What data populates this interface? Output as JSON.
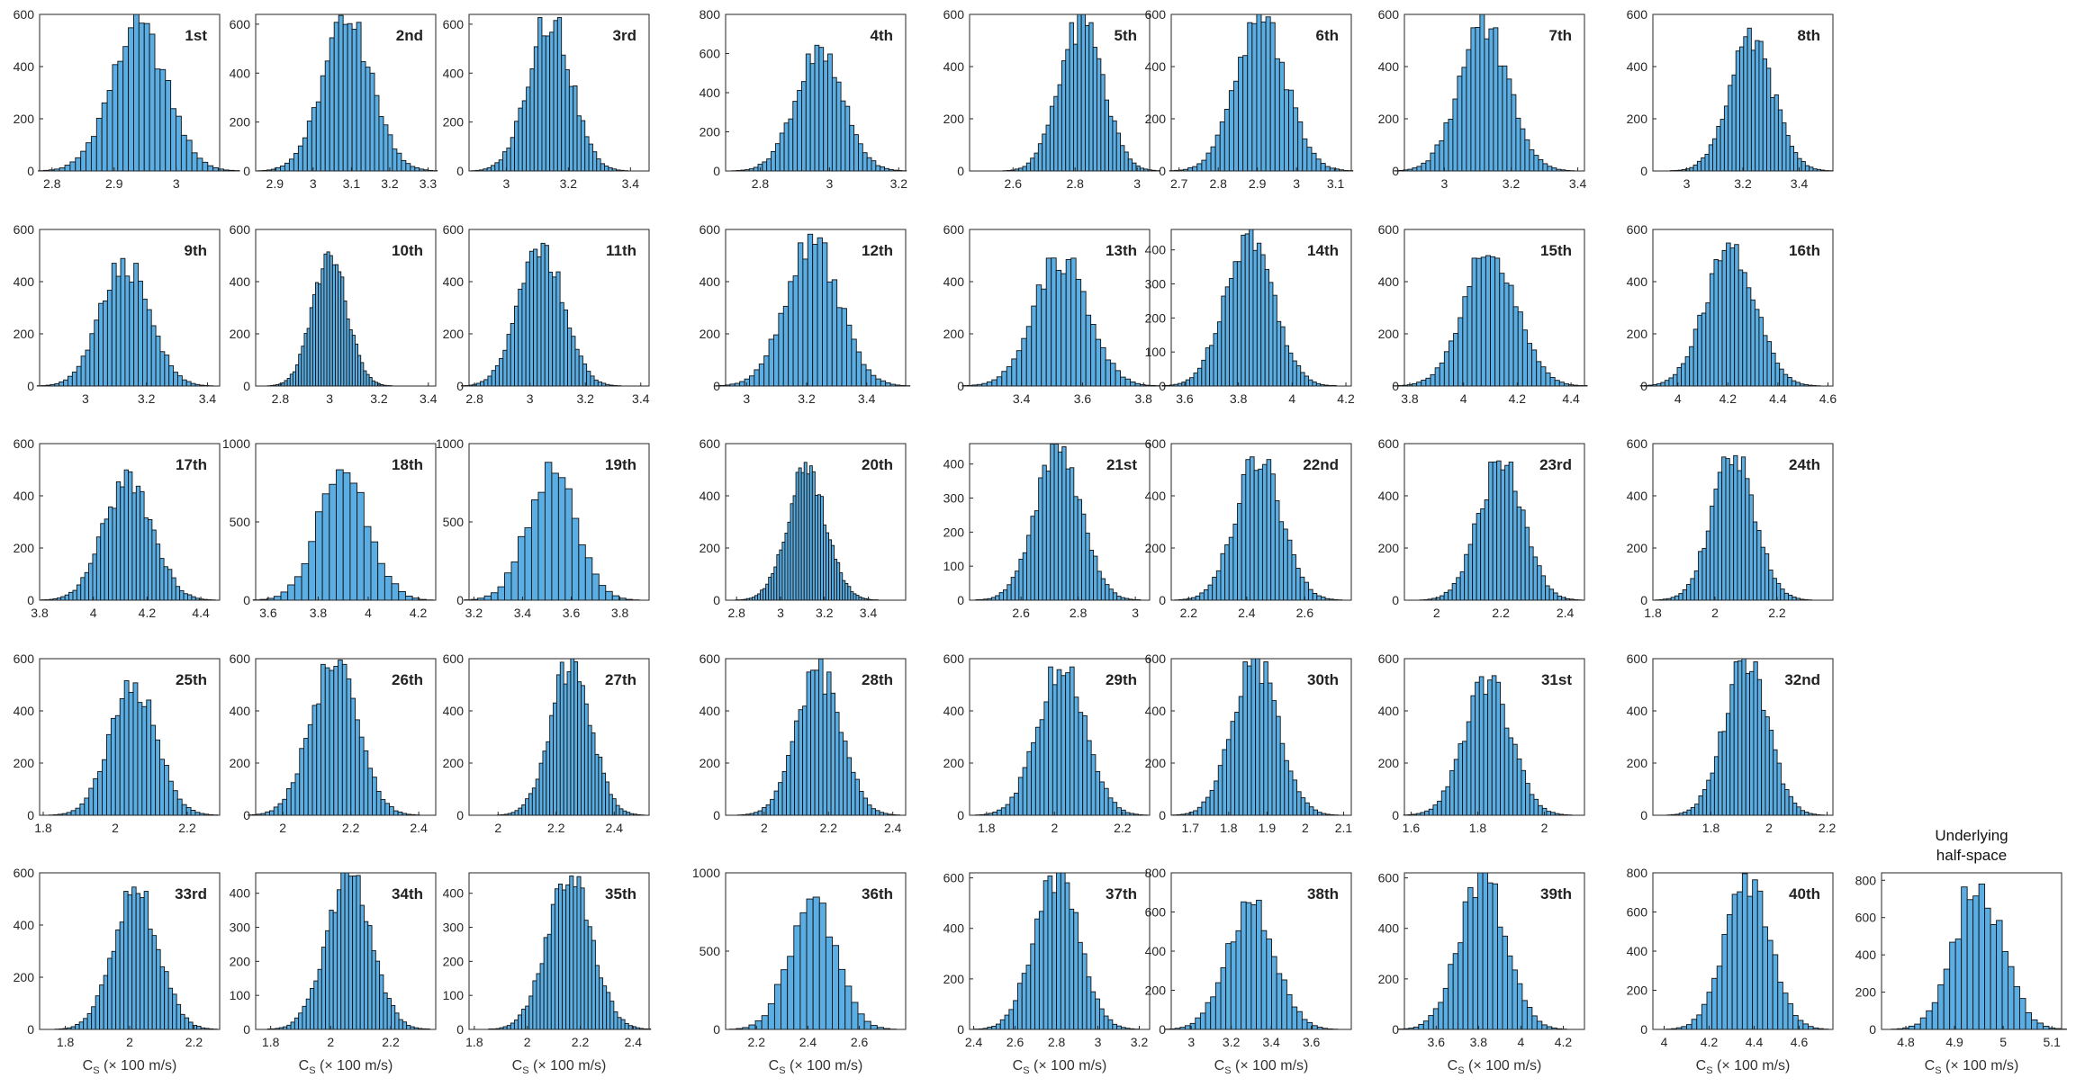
{
  "figure": {
    "xlabel": "C",
    "xlabel_sub": "S",
    "xlabel_units": " (× 100 m/s)",
    "bar_color": "#5aaee3",
    "bar_edge": "#111111",
    "axis_color": "#262626",
    "tick_label_color": "#262626"
  },
  "chart_data": [
    {
      "type": "bar",
      "label": "1st",
      "xlim": [
        2.78,
        3.07
      ],
      "xticks": [
        2.8,
        2.9,
        3
      ],
      "ylim": [
        0,
        600
      ],
      "yticks": [
        0,
        200,
        400,
        600
      ],
      "mean": 2.94,
      "sd": 0.045,
      "peak": 560,
      "nbins": 38
    },
    {
      "type": "bar",
      "label": "2nd",
      "xlim": [
        2.85,
        3.32
      ],
      "xticks": [
        2.9,
        3,
        3.1,
        3.2,
        3.3
      ],
      "ylim": [
        0,
        640
      ],
      "yticks": [
        0,
        200,
        400,
        600
      ],
      "mean": 3.09,
      "sd": 0.065,
      "peak": 620,
      "nbins": 40
    },
    {
      "type": "bar",
      "label": "3rd",
      "xlim": [
        2.88,
        3.46
      ],
      "xticks": [
        3,
        3.2,
        3.4
      ],
      "ylim": [
        0,
        640
      ],
      "yticks": [
        0,
        200,
        400,
        600
      ],
      "mean": 3.14,
      "sd": 0.07,
      "peak": 640,
      "nbins": 40
    },
    {
      "type": "bar",
      "label": "4th",
      "xlim": [
        2.7,
        3.22
      ],
      "xticks": [
        2.8,
        3,
        3.2
      ],
      "ylim": [
        0,
        800
      ],
      "yticks": [
        0,
        200,
        400,
        600,
        800
      ],
      "mean": 2.97,
      "sd": 0.07,
      "peak": 610,
      "nbins": 40
    },
    {
      "type": "bar",
      "label": "5th",
      "xlim": [
        2.46,
        3.04
      ],
      "xticks": [
        2.6,
        2.8,
        3
      ],
      "ylim": [
        0,
        600
      ],
      "yticks": [
        0,
        200,
        400,
        600
      ],
      "mean": 2.82,
      "sd": 0.07,
      "peak": 580,
      "nbins": 40
    },
    {
      "type": "bar",
      "label": "6th",
      "xlim": [
        2.68,
        3.14
      ],
      "xticks": [
        2.7,
        2.8,
        2.9,
        3,
        3.1
      ],
      "ylim": [
        0,
        600
      ],
      "yticks": [
        0,
        200,
        400,
        600
      ],
      "mean": 2.91,
      "sd": 0.065,
      "peak": 580,
      "nbins": 40
    },
    {
      "type": "bar",
      "label": "7th",
      "xlim": [
        2.88,
        3.42
      ],
      "xticks": [
        3,
        3.2,
        3.4
      ],
      "ylim": [
        0,
        600
      ],
      "yticks": [
        0,
        200,
        400,
        600
      ],
      "mean": 3.12,
      "sd": 0.075,
      "peak": 560,
      "nbins": 40
    },
    {
      "type": "bar",
      "label": "8th",
      "xlim": [
        2.88,
        3.52
      ],
      "xticks": [
        3,
        3.2,
        3.4
      ],
      "ylim": [
        0,
        600
      ],
      "yticks": [
        0,
        200,
        400,
        600
      ],
      "mean": 3.23,
      "sd": 0.08,
      "peak": 510,
      "nbins": 42
    },
    {
      "type": "bar",
      "label": "9th",
      "xlim": [
        2.85,
        3.44
      ],
      "xticks": [
        3,
        3.2,
        3.4
      ],
      "ylim": [
        0,
        600
      ],
      "yticks": [
        0,
        200,
        400,
        600
      ],
      "mean": 3.13,
      "sd": 0.08,
      "peak": 480,
      "nbins": 40
    },
    {
      "type": "bar",
      "label": "10th",
      "xlim": [
        2.7,
        3.43
      ],
      "xticks": [
        2.8,
        3,
        3.2,
        3.4
      ],
      "ylim": [
        0,
        600
      ],
      "yticks": [
        0,
        200,
        400,
        600
      ],
      "mean": 3.0,
      "sd": 0.07,
      "peak": 510,
      "nbins": 44
    },
    {
      "type": "bar",
      "label": "11th",
      "xlim": [
        2.78,
        3.43
      ],
      "xticks": [
        2.8,
        3,
        3.2,
        3.4
      ],
      "ylim": [
        0,
        600
      ],
      "yticks": [
        0,
        200,
        400,
        600
      ],
      "mean": 3.04,
      "sd": 0.08,
      "peak": 550,
      "nbins": 42
    },
    {
      "type": "bar",
      "label": "12th",
      "xlim": [
        2.93,
        3.53
      ],
      "xticks": [
        3,
        3.2,
        3.4
      ],
      "ylim": [
        0,
        600
      ],
      "yticks": [
        0,
        200,
        400,
        600
      ],
      "mean": 3.22,
      "sd": 0.09,
      "peak": 560,
      "nbins": 40
    },
    {
      "type": "bar",
      "label": "13th",
      "xlim": [
        3.23,
        3.82
      ],
      "xticks": [
        3.4,
        3.6,
        3.8
      ],
      "ylim": [
        0,
        600
      ],
      "yticks": [
        0,
        200,
        400,
        600
      ],
      "mean": 3.53,
      "sd": 0.09,
      "peak": 500,
      "nbins": 40
    },
    {
      "type": "bar",
      "label": "14th",
      "xlim": [
        3.55,
        4.22
      ],
      "xticks": [
        3.6,
        3.8,
        4,
        4.2
      ],
      "ylim": [
        0,
        460
      ],
      "yticks": [
        0,
        100,
        200,
        300,
        400
      ],
      "mean": 3.84,
      "sd": 0.09,
      "peak": 460,
      "nbins": 44
    },
    {
      "type": "bar",
      "label": "15th",
      "xlim": [
        3.78,
        4.45
      ],
      "xticks": [
        3.8,
        4,
        4.2,
        4.4
      ],
      "ylim": [
        0,
        600
      ],
      "yticks": [
        0,
        200,
        400,
        600
      ],
      "mean": 4.1,
      "sd": 0.1,
      "peak": 500,
      "nbins": 42
    },
    {
      "type": "bar",
      "label": "16th",
      "xlim": [
        3.9,
        4.62
      ],
      "xticks": [
        4,
        4.2,
        4.4,
        4.6
      ],
      "ylim": [
        0,
        600
      ],
      "yticks": [
        0,
        200,
        400,
        600
      ],
      "mean": 4.21,
      "sd": 0.1,
      "peak": 540,
      "nbins": 44
    },
    {
      "type": "bar",
      "label": "17th",
      "xlim": [
        3.8,
        4.47
      ],
      "xticks": [
        3.8,
        4,
        4.2,
        4.4
      ],
      "ylim": [
        0,
        600
      ],
      "yticks": [
        0,
        200,
        400,
        600
      ],
      "mean": 4.13,
      "sd": 0.09,
      "peak": 480,
      "nbins": 44
    },
    {
      "type": "bar",
      "label": "18th",
      "xlim": [
        3.55,
        4.27
      ],
      "xticks": [
        3.6,
        3.8,
        4,
        4.2
      ],
      "ylim": [
        0,
        1000
      ],
      "yticks": [
        0,
        500,
        1000
      ],
      "mean": 3.9,
      "sd": 0.1,
      "peak": 850,
      "nbins": 26
    },
    {
      "type": "bar",
      "label": "19th",
      "xlim": [
        3.18,
        3.92
      ],
      "xticks": [
        3.2,
        3.4,
        3.6,
        3.8
      ],
      "ylim": [
        0,
        1000
      ],
      "yticks": [
        0,
        500,
        1000
      ],
      "mean": 3.52,
      "sd": 0.1,
      "peak": 840,
      "nbins": 26
    },
    {
      "type": "bar",
      "label": "20th",
      "xlim": [
        2.75,
        3.57
      ],
      "xticks": [
        2.8,
        3,
        3.2,
        3.4
      ],
      "ylim": [
        0,
        600
      ],
      "yticks": [
        0,
        200,
        400,
        600
      ],
      "mean": 3.12,
      "sd": 0.09,
      "peak": 500,
      "nbins": 52
    },
    {
      "type": "bar",
      "label": "21st",
      "xlim": [
        2.42,
        3.05
      ],
      "xticks": [
        2.6,
        2.8,
        3
      ],
      "ylim": [
        0,
        460
      ],
      "yticks": [
        0,
        100,
        200,
        300,
        400
      ],
      "mean": 2.73,
      "sd": 0.08,
      "peak": 460,
      "nbins": 42
    },
    {
      "type": "bar",
      "label": "22nd",
      "xlim": [
        2.14,
        2.76
      ],
      "xticks": [
        2.2,
        2.4,
        2.6
      ],
      "ylim": [
        0,
        600
      ],
      "yticks": [
        0,
        200,
        400,
        600
      ],
      "mean": 2.44,
      "sd": 0.08,
      "peak": 550,
      "nbins": 40
    },
    {
      "type": "bar",
      "label": "23rd",
      "xlim": [
        1.9,
        2.46
      ],
      "xticks": [
        2,
        2.2,
        2.4
      ],
      "ylim": [
        0,
        600
      ],
      "yticks": [
        0,
        200,
        400,
        600
      ],
      "mean": 2.2,
      "sd": 0.07,
      "peak": 540,
      "nbins": 40
    },
    {
      "type": "bar",
      "label": "24th",
      "xlim": [
        1.8,
        2.38
      ],
      "xticks": [
        1.8,
        2,
        2.2
      ],
      "ylim": [
        0,
        600
      ],
      "yticks": [
        0,
        200,
        400,
        600
      ],
      "mean": 2.06,
      "sd": 0.07,
      "peak": 560,
      "nbins": 40
    },
    {
      "type": "bar",
      "label": "25th",
      "xlim": [
        1.79,
        2.29
      ],
      "xticks": [
        1.8,
        2,
        2.2
      ],
      "ylim": [
        0,
        600
      ],
      "yticks": [
        0,
        200,
        400,
        600
      ],
      "mean": 2.05,
      "sd": 0.065,
      "peak": 510,
      "nbins": 38
    },
    {
      "type": "bar",
      "label": "26th",
      "xlim": [
        1.92,
        2.45
      ],
      "xticks": [
        2,
        2.2,
        2.4
      ],
      "ylim": [
        0,
        600
      ],
      "yticks": [
        0,
        200,
        400,
        600
      ],
      "mean": 2.15,
      "sd": 0.07,
      "peak": 590,
      "nbins": 40
    },
    {
      "type": "bar",
      "label": "27th",
      "xlim": [
        1.9,
        2.52
      ],
      "xticks": [
        2,
        2.2,
        2.4
      ],
      "ylim": [
        0,
        600
      ],
      "yticks": [
        0,
        200,
        400,
        600
      ],
      "mean": 2.25,
      "sd": 0.07,
      "peak": 600,
      "nbins": 42
    },
    {
      "type": "bar",
      "label": "28th",
      "xlim": [
        1.88,
        2.44
      ],
      "xticks": [
        2,
        2.2,
        2.4
      ],
      "ylim": [
        0,
        600
      ],
      "yticks": [
        0,
        200,
        400,
        600
      ],
      "mean": 2.17,
      "sd": 0.07,
      "peak": 560,
      "nbins": 40
    },
    {
      "type": "bar",
      "label": "29th",
      "xlim": [
        1.75,
        2.28
      ],
      "xticks": [
        1.8,
        2,
        2.2
      ],
      "ylim": [
        0,
        600
      ],
      "yticks": [
        0,
        200,
        400,
        600
      ],
      "mean": 2.02,
      "sd": 0.07,
      "peak": 580,
      "nbins": 40
    },
    {
      "type": "bar",
      "label": "30th",
      "xlim": [
        1.65,
        2.12
      ],
      "xticks": [
        1.7,
        1.8,
        1.9,
        2,
        2.1
      ],
      "ylim": [
        0,
        600
      ],
      "yticks": [
        0,
        200,
        400,
        600
      ],
      "mean": 1.87,
      "sd": 0.06,
      "peak": 600,
      "nbins": 40
    },
    {
      "type": "bar",
      "label": "31st",
      "xlim": [
        1.58,
        2.12
      ],
      "xticks": [
        1.6,
        1.8,
        2
      ],
      "ylim": [
        0,
        600
      ],
      "yticks": [
        0,
        200,
        400,
        600
      ],
      "mean": 1.83,
      "sd": 0.07,
      "peak": 520,
      "nbins": 40
    },
    {
      "type": "bar",
      "label": "32nd",
      "xlim": [
        1.6,
        2.22
      ],
      "xticks": [
        1.8,
        2,
        2.2
      ],
      "ylim": [
        0,
        600
      ],
      "yticks": [
        0,
        200,
        400,
        600
      ],
      "mean": 1.92,
      "sd": 0.075,
      "peak": 600,
      "nbins": 40
    },
    {
      "type": "bar",
      "label": "33rd",
      "xlim": [
        1.72,
        2.28
      ],
      "xticks": [
        1.8,
        2,
        2.2
      ],
      "ylim": [
        0,
        600
      ],
      "yticks": [
        0,
        200,
        400,
        600
      ],
      "mean": 2.02,
      "sd": 0.07,
      "peak": 540,
      "nbins": 40
    },
    {
      "type": "bar",
      "label": "34th",
      "xlim": [
        1.75,
        2.35
      ],
      "xticks": [
        1.8,
        2,
        2.2
      ],
      "ylim": [
        0,
        460
      ],
      "yticks": [
        0,
        100,
        200,
        300,
        400
      ],
      "mean": 2.06,
      "sd": 0.075,
      "peak": 460,
      "nbins": 42
    },
    {
      "type": "bar",
      "label": "35th",
      "xlim": [
        1.78,
        2.46
      ],
      "xticks": [
        1.8,
        2,
        2.2,
        2.4
      ],
      "ylim": [
        0,
        460
      ],
      "yticks": [
        0,
        100,
        200,
        300,
        400
      ],
      "mean": 2.16,
      "sd": 0.085,
      "peak": 460,
      "nbins": 44
    },
    {
      "type": "bar",
      "label": "36th",
      "xlim": [
        2.08,
        2.78
      ],
      "xticks": [
        2.2,
        2.4,
        2.6
      ],
      "ylim": [
        0,
        1000
      ],
      "yticks": [
        0,
        500,
        1000
      ],
      "mean": 2.42,
      "sd": 0.09,
      "peak": 850,
      "nbins": 26
    },
    {
      "type": "bar",
      "label": "37th",
      "xlim": [
        2.38,
        3.25
      ],
      "xticks": [
        2.4,
        2.6,
        2.8,
        3,
        3.2
      ],
      "ylim": [
        0,
        620
      ],
      "yticks": [
        0,
        200,
        400,
        600
      ],
      "mean": 2.8,
      "sd": 0.11,
      "peak": 620,
      "nbins": 38
    },
    {
      "type": "bar",
      "label": "38th",
      "xlim": [
        2.9,
        3.8
      ],
      "xticks": [
        3,
        3.2,
        3.4,
        3.6
      ],
      "ylim": [
        0,
        800
      ],
      "yticks": [
        0,
        200,
        400,
        600,
        800
      ],
      "mean": 3.3,
      "sd": 0.12,
      "peak": 650,
      "nbins": 34
    },
    {
      "type": "bar",
      "label": "39th",
      "xlim": [
        3.45,
        4.3
      ],
      "xticks": [
        3.6,
        3.8,
        4,
        4.2
      ],
      "ylim": [
        0,
        620
      ],
      "yticks": [
        0,
        200,
        400,
        600
      ],
      "mean": 3.82,
      "sd": 0.11,
      "peak": 620,
      "nbins": 34
    },
    {
      "type": "bar",
      "label": "40th",
      "xlim": [
        3.95,
        4.75
      ],
      "xticks": [
        4,
        4.2,
        4.4,
        4.6
      ],
      "ylim": [
        0,
        800
      ],
      "yticks": [
        0,
        200,
        400,
        600,
        800
      ],
      "mean": 4.37,
      "sd": 0.1,
      "peak": 780,
      "nbins": 32
    },
    {
      "type": "bar",
      "label": "",
      "title": "Underlying\nhalf-space",
      "xlim": [
        4.75,
        5.12
      ],
      "xticks": [
        4.8,
        4.9,
        5,
        5.1
      ],
      "ylim": [
        0,
        840
      ],
      "yticks": [
        0,
        200,
        400,
        600,
        800
      ],
      "mean": 4.95,
      "sd": 0.05,
      "peak": 780,
      "nbins": 30
    }
  ]
}
